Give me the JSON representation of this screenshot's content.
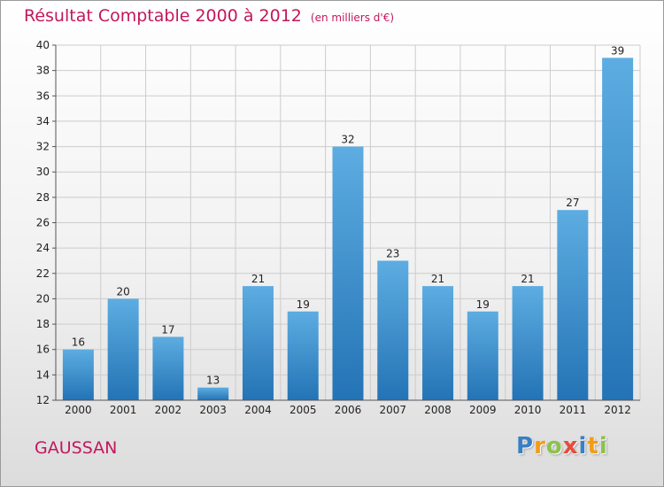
{
  "chart_data": {
    "type": "bar",
    "title": "Résultat Comptable 2000 à 2012",
    "subtitle": "(en milliers d'€)",
    "categories": [
      "2000",
      "2001",
      "2002",
      "2003",
      "2004",
      "2005",
      "2006",
      "2007",
      "2008",
      "2009",
      "2010",
      "2011",
      "2012"
    ],
    "values": [
      16,
      20,
      17,
      13,
      21,
      19,
      32,
      23,
      21,
      19,
      21,
      27,
      39
    ],
    "ylim": [
      12,
      40
    ],
    "yticks": [
      12,
      14,
      16,
      18,
      20,
      22,
      24,
      26,
      28,
      30,
      32,
      34,
      36,
      38,
      40
    ],
    "grid": true,
    "xlabel": "",
    "ylabel": ""
  },
  "place_name": "GAUSSAN",
  "brand": {
    "text": "Proxiti",
    "letter_colors": [
      "#3a7fc4",
      "#f39c12",
      "#8bc34a",
      "#e74c3c",
      "#3a7fc4",
      "#f39c12",
      "#8bc34a"
    ]
  },
  "colors": {
    "bar_light": "#5dade2",
    "bar_dark": "#2473b5",
    "title": "#c2185b",
    "grid": "#cccccc"
  }
}
